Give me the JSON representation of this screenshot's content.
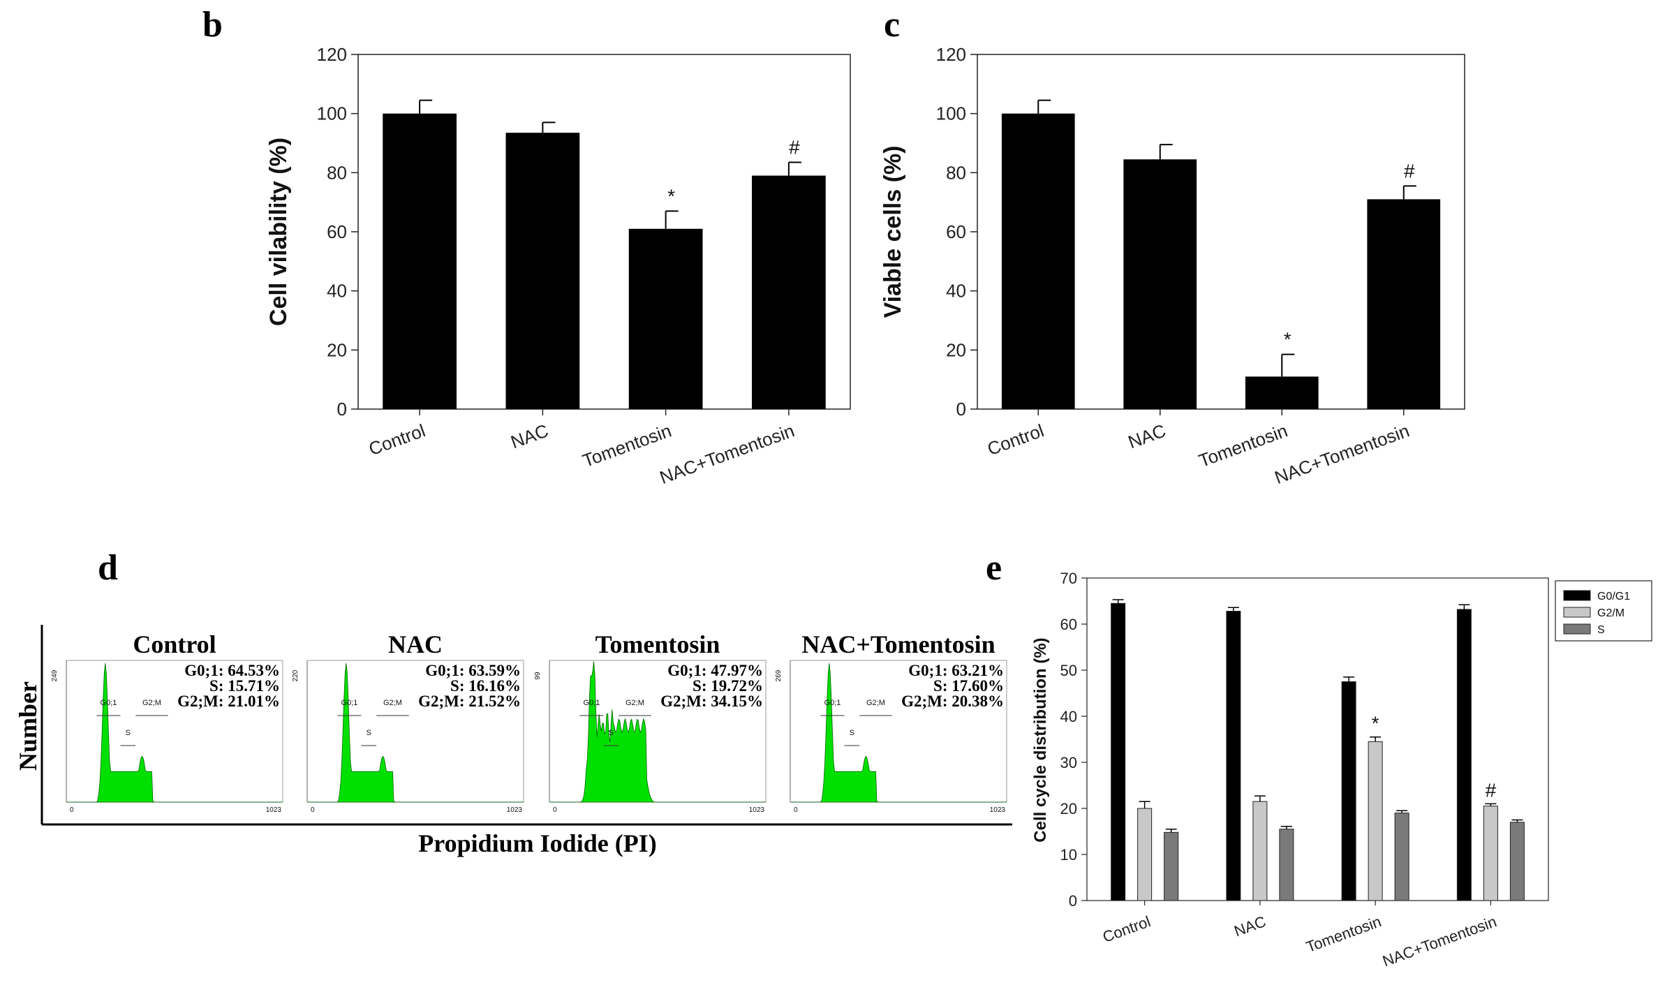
{
  "panels": {
    "b": "b",
    "c": "c",
    "d": "d",
    "e": "e"
  },
  "chart_data": [
    {
      "type": "bar",
      "panel": "b",
      "categories": [
        "Control",
        "NAC",
        "Tomentosin",
        "NAC+Tomentosin"
      ],
      "values": [
        100,
        93.5,
        61,
        79
      ],
      "errors": [
        4.5,
        3.5,
        6,
        4.5
      ],
      "annotations": [
        "",
        "",
        "*",
        "#"
      ],
      "ylabel": "Cell vilability (%)",
      "yticks": [
        0,
        20,
        40,
        60,
        80,
        100,
        120
      ],
      "ylim": [
        0,
        120
      ],
      "color": "#000000"
    },
    {
      "type": "bar",
      "panel": "c",
      "categories": [
        "Control",
        "NAC",
        "Tomentosin",
        "NAC+Tomentosin"
      ],
      "values": [
        100,
        84.5,
        11,
        71
      ],
      "errors": [
        4.5,
        5,
        7.5,
        4.5
      ],
      "annotations": [
        "",
        "",
        "*",
        "#"
      ],
      "ylabel": "Viable cells (%)",
      "yticks": [
        0,
        20,
        40,
        60,
        80,
        100,
        120
      ],
      "ylim": [
        0,
        120
      ],
      "color": "#000000"
    },
    {
      "type": "area",
      "panel": "d",
      "xlabel": "Propidium Iodide (PI)",
      "ylabel": "Number",
      "histograms": [
        {
          "title": "Control",
          "ymax": "249",
          "xmin": "0",
          "xmax": "1023",
          "stats": [
            "G0;1: 64.53%",
            "S: 15.71%",
            "G2;M: 21.01%"
          ],
          "gates": [
            "G0;1",
            "S",
            "G2;M"
          ],
          "shape": "normal"
        },
        {
          "title": "NAC",
          "ymax": "220",
          "xmin": "0",
          "xmax": "1023",
          "stats": [
            "G0;1: 63.59%",
            "S: 16.16%",
            "G2;M: 21.52%"
          ],
          "gates": [
            "G0;1",
            "S",
            "G2;M"
          ],
          "shape": "normal"
        },
        {
          "title": "Tomentosin",
          "ymax": "99",
          "xmin": "0",
          "xmax": "1023",
          "stats": [
            "G0;1: 47.97%",
            "S: 19.72%",
            "G2;M: 34.15%"
          ],
          "gates": [
            "G0;1",
            "S",
            "G2;M"
          ],
          "shape": "broad"
        },
        {
          "title": "NAC+Tomentosin",
          "ymax": "269",
          "xmin": "0",
          "xmax": "1023",
          "stats": [
            "G0;1: 63.21%",
            "S: 17.60%",
            "G2;M: 20.38%"
          ],
          "gates": [
            "G0;1",
            "S",
            "G2;M"
          ],
          "shape": "normal"
        }
      ],
      "fill_color": "#00e000"
    },
    {
      "type": "bar",
      "panel": "e",
      "categories": [
        "Control",
        "NAC",
        "Tomentosin",
        "NAC+Tomentosin"
      ],
      "series": [
        {
          "name": "G0/G1",
          "values": [
            64.5,
            62.8,
            47.5,
            63.2
          ],
          "errors": [
            0.8,
            0.8,
            1.0,
            1.0
          ],
          "annotations": [
            "",
            "",
            "",
            ""
          ],
          "color": "#000000"
        },
        {
          "name": "G2/M",
          "values": [
            20,
            21.5,
            34.5,
            20.5
          ],
          "errors": [
            1.5,
            1.2,
            1.0,
            0.5
          ],
          "annotations": [
            "",
            "",
            "*",
            "#"
          ],
          "color": "#c8c8c8"
        },
        {
          "name": "S",
          "values": [
            14.8,
            15.5,
            19,
            17
          ],
          "errors": [
            0.7,
            0.6,
            0.5,
            0.5
          ],
          "annotations": [
            "",
            "",
            "",
            ""
          ],
          "color": "#7a7a7a"
        }
      ],
      "ylabel": "Cell cycle distribution (%)",
      "yticks": [
        0,
        10,
        20,
        30,
        40,
        50,
        60,
        70
      ],
      "ylim": [
        0,
        70
      ],
      "legend": "top-right"
    }
  ]
}
